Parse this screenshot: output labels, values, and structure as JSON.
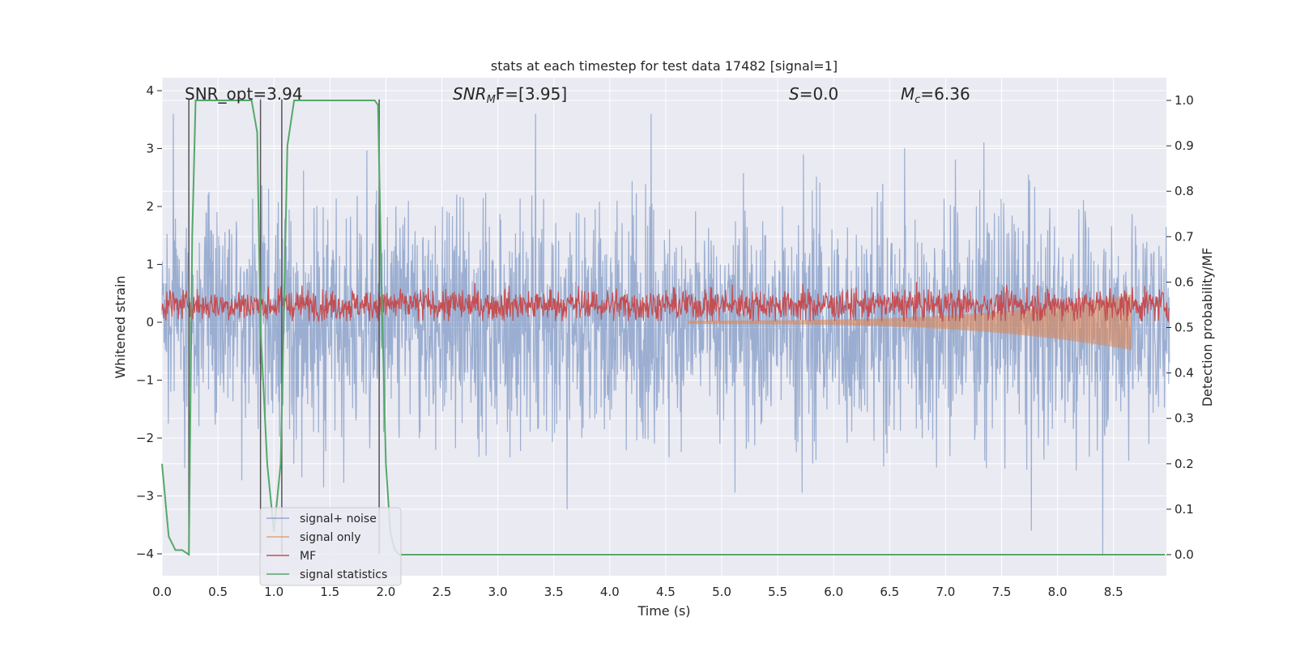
{
  "chart_data": {
    "type": "line",
    "title": "stats at each timestep for test data 17482 [signal=1]",
    "xlabel": "Time (s)",
    "ylabel": "Whitened strain",
    "y2label": "Detection probability/MF",
    "xlim": [
      0.0,
      9.0
    ],
    "ylim": [
      -4.4,
      4.2
    ],
    "y2lim": [
      -0.05,
      1.05
    ],
    "xticks": [
      "0.0",
      "0.5",
      "1.0",
      "1.5",
      "2.0",
      "2.5",
      "3.0",
      "3.5",
      "4.0",
      "4.5",
      "5.0",
      "5.5",
      "6.0",
      "6.5",
      "7.0",
      "7.5",
      "8.0",
      "8.5"
    ],
    "yticks": [
      "4",
      "3",
      "2",
      "1",
      "0",
      "−1",
      "−2",
      "−3",
      "−4"
    ],
    "y2ticks": [
      "1.0",
      "0.9",
      "0.8",
      "0.7",
      "0.6",
      "0.5",
      "0.4",
      "0.3",
      "0.2",
      "0.1",
      "0.0"
    ],
    "annotations": {
      "snr_opt": "SNR_opt=3.94",
      "snr_mf_prefix": "SNR",
      "snr_mf_sub": "M",
      "snr_mf_suffix": "F=[3.95]",
      "s_prefix": "S",
      "s_value": "=0.0",
      "mc_prefix": "M",
      "mc_sub": "c",
      "mc_value": "=6.36"
    },
    "legend": {
      "location": "lower-left",
      "entries": [
        "signal+ noise",
        "signal only",
        "MF",
        "signal statistics"
      ]
    },
    "colors": {
      "background": "#eaeaf2",
      "grid": "#ffffff",
      "signal_noise": "#4c72b0",
      "signal_only": "#dd8452",
      "mf": "#c44e52",
      "statistics": "#55a868",
      "markers": "#555555"
    },
    "series": [
      {
        "name": "signal statistics",
        "axis": "right",
        "x": [
          0.0,
          0.06,
          0.12,
          0.18,
          0.24,
          0.27,
          0.3,
          0.33,
          0.8,
          0.85,
          0.88,
          0.94,
          1.0,
          1.06,
          1.12,
          1.18,
          1.9,
          1.93,
          1.96,
          2.0,
          2.04,
          2.08,
          2.12,
          2.2,
          8.96
        ],
        "y": [
          0.2,
          0.04,
          0.01,
          0.01,
          0.0,
          0.7,
          1.0,
          1.0,
          1.0,
          0.93,
          0.5,
          0.2,
          0.05,
          0.2,
          0.9,
          1.0,
          1.0,
          0.99,
          0.6,
          0.2,
          0.05,
          0.01,
          0.0,
          0.0,
          0.0
        ]
      }
    ],
    "vertical_markers_s": [
      0.24,
      0.88,
      1.07,
      1.94
    ],
    "noise_envelope": {
      "typical_positive": 1.5,
      "typical_negative": -1.7,
      "extreme_min": -4.0,
      "extreme_max": 3.6
    },
    "mf_band": {
      "low": 0.02,
      "high": 0.7
    },
    "signal_only_growth": {
      "start_s": 4.7,
      "end_s": 8.66,
      "end_amplitude": 0.45
    }
  }
}
